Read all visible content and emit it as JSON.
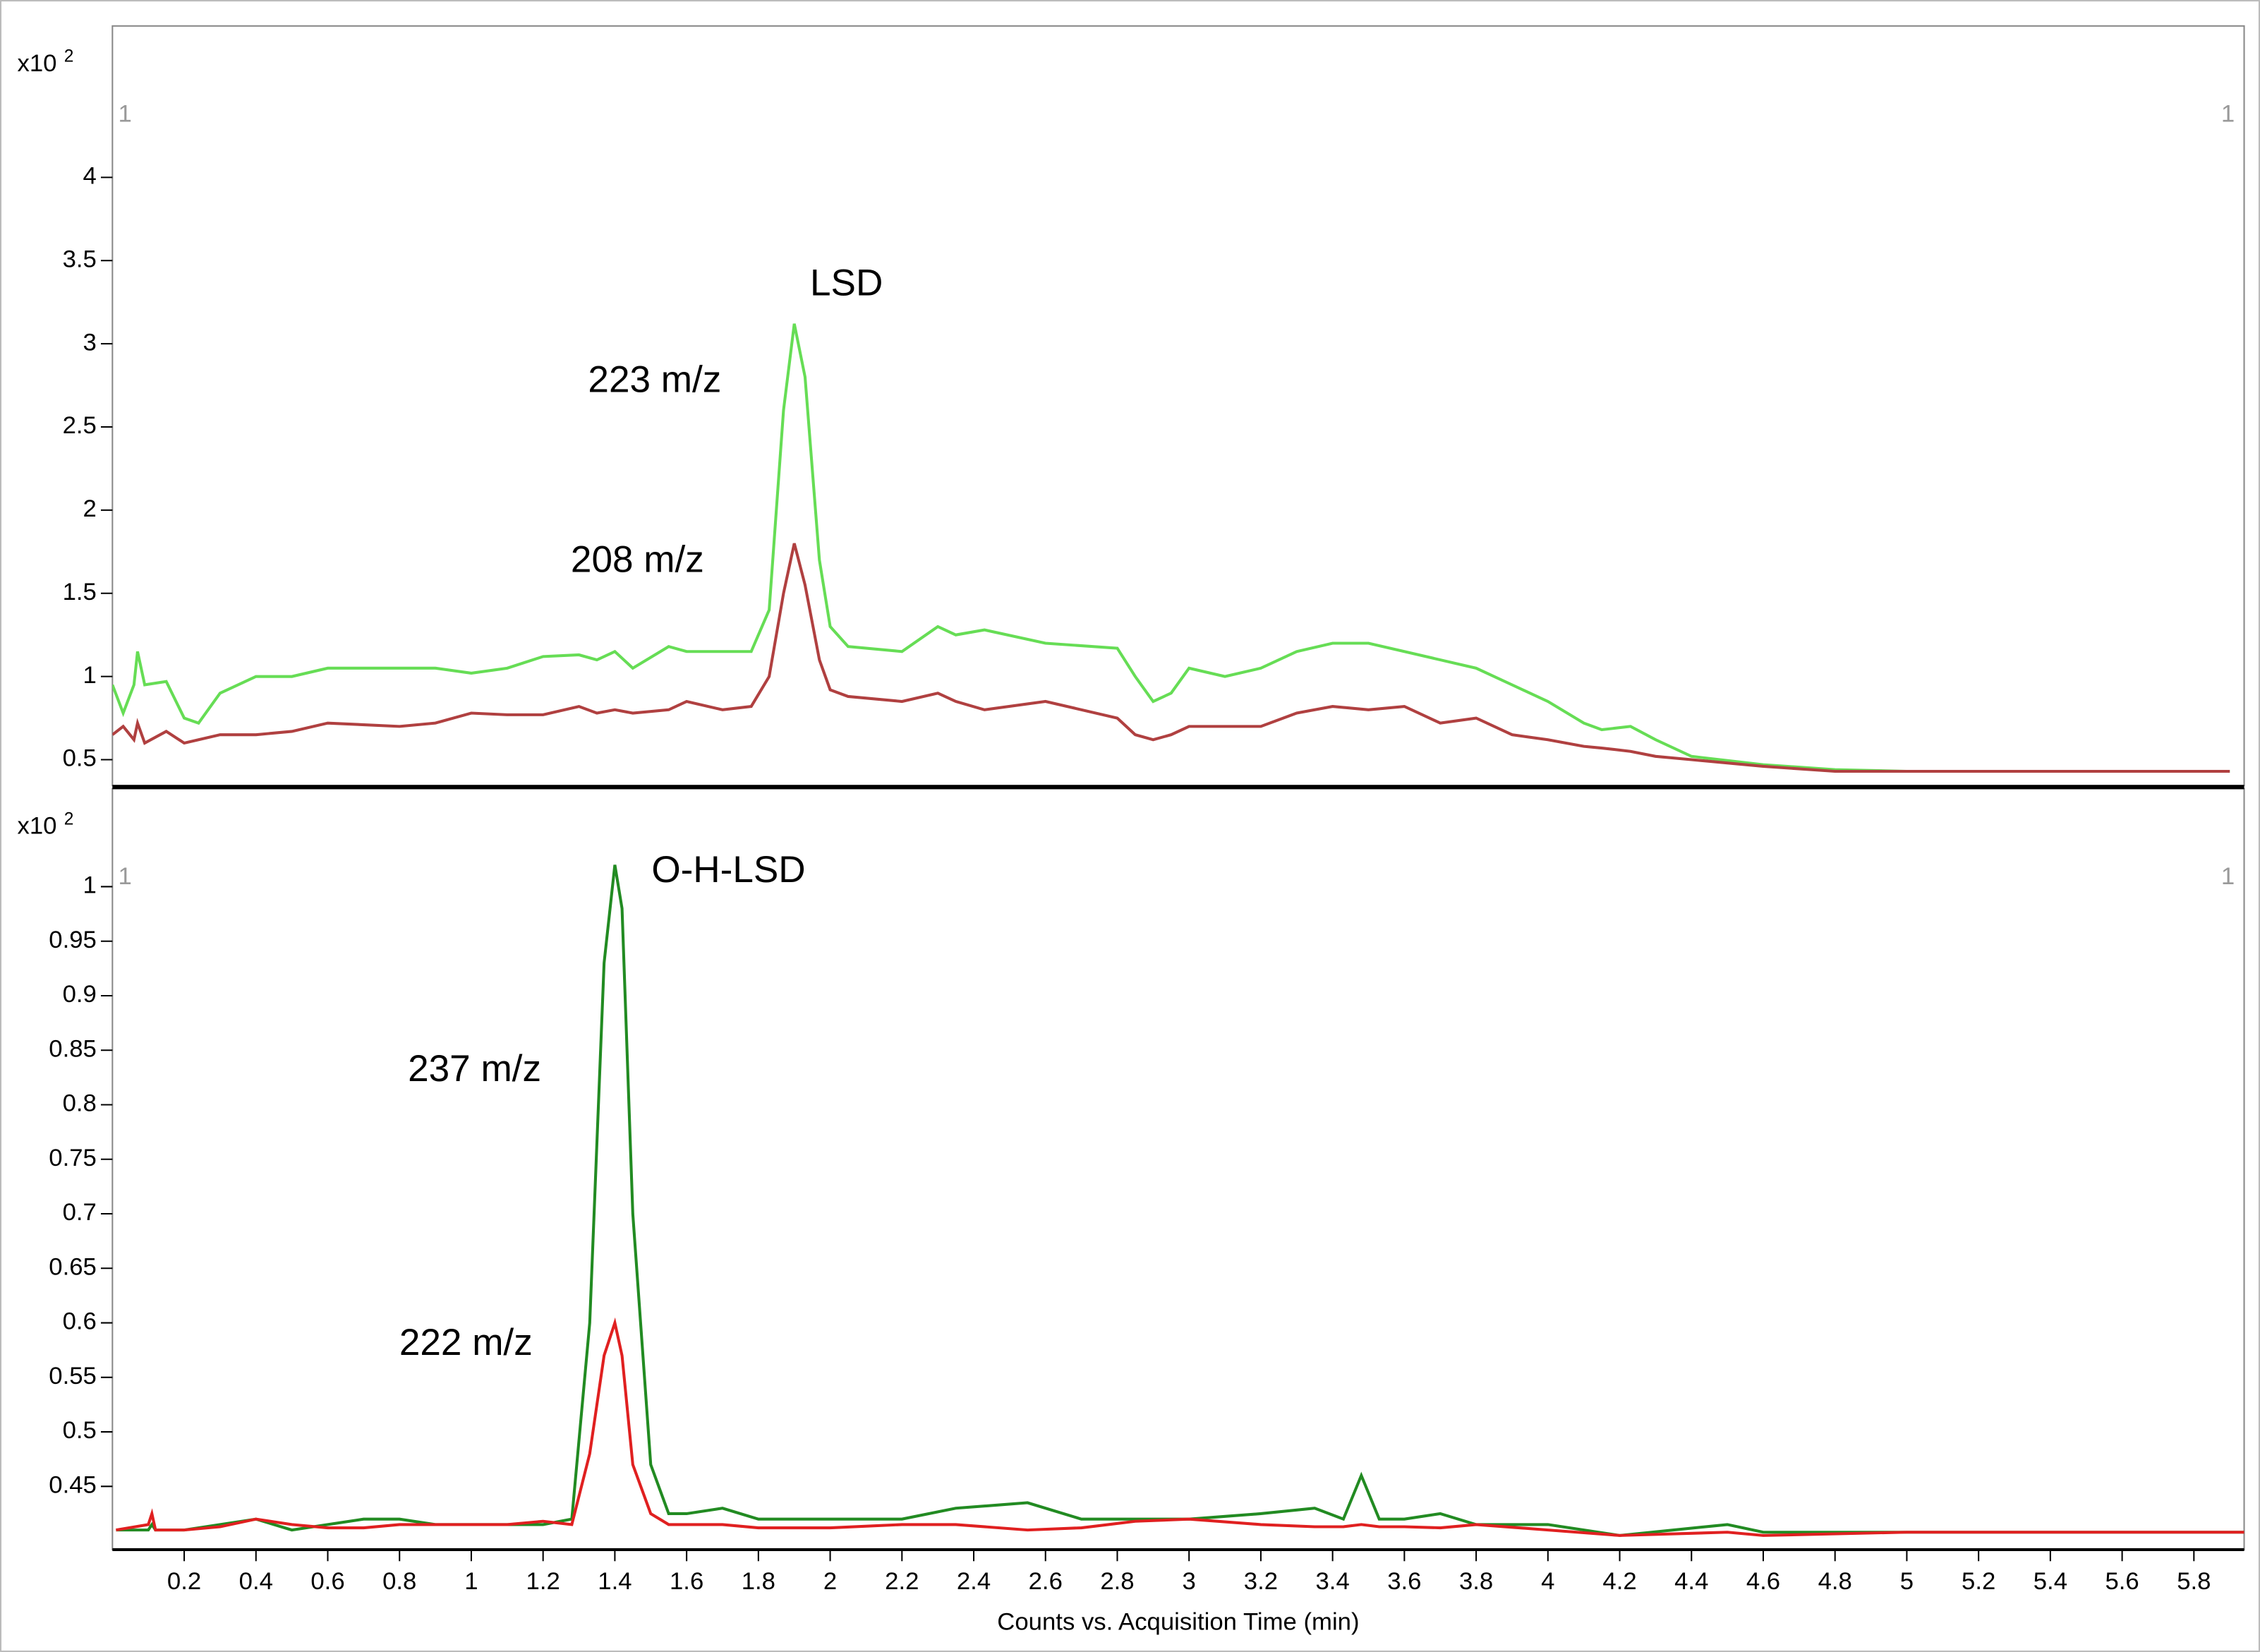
{
  "chart_data": [
    {
      "type": "line",
      "y_unit": {
        "base": "x10",
        "exponent": "2"
      },
      "corner_label": "1",
      "annotations": [
        "LSD",
        "223 m/z",
        "208 m/z"
      ],
      "x": [
        0,
        0.03,
        0.06,
        0.07,
        0.09,
        0.15,
        0.2,
        0.24,
        0.3,
        0.4,
        0.5,
        0.6,
        0.8,
        0.9,
        1.0,
        1.1,
        1.2,
        1.3,
        1.35,
        1.4,
        1.45,
        1.55,
        1.6,
        1.7,
        1.78,
        1.83,
        1.87,
        1.9,
        1.93,
        1.97,
        2.0,
        2.05,
        2.2,
        2.3,
        2.35,
        2.43,
        2.6,
        2.8,
        2.85,
        2.9,
        2.95,
        3.0,
        3.1,
        3.2,
        3.3,
        3.4,
        3.5,
        3.6,
        3.7,
        3.8,
        3.9,
        4.0,
        4.1,
        4.15,
        4.23,
        4.3,
        4.4,
        4.6,
        4.8,
        5.0,
        5.9
      ],
      "series": [
        {
          "color": "#66dd55",
          "values": [
            0.95,
            0.78,
            0.95,
            1.15,
            0.95,
            0.97,
            0.75,
            0.72,
            0.9,
            1.0,
            1.0,
            1.05,
            1.05,
            1.05,
            1.02,
            1.05,
            1.12,
            1.13,
            1.1,
            1.15,
            1.05,
            1.18,
            1.15,
            1.15,
            1.15,
            1.4,
            2.6,
            3.12,
            2.8,
            1.7,
            1.3,
            1.18,
            1.15,
            1.3,
            1.25,
            1.28,
            1.2,
            1.17,
            1.0,
            0.85,
            0.9,
            1.05,
            1.0,
            1.05,
            1.15,
            1.2,
            1.2,
            1.15,
            1.1,
            1.05,
            0.95,
            0.85,
            0.72,
            0.68,
            0.7,
            0.62,
            0.52,
            0.47,
            0.44,
            0.43,
            0.43
          ]
        },
        {
          "color": "#b04040",
          "values": [
            0.65,
            0.7,
            0.62,
            0.72,
            0.6,
            0.67,
            0.6,
            0.62,
            0.65,
            0.65,
            0.67,
            0.72,
            0.7,
            0.72,
            0.78,
            0.77,
            0.77,
            0.82,
            0.78,
            0.8,
            0.78,
            0.8,
            0.85,
            0.8,
            0.82,
            1.0,
            1.5,
            1.8,
            1.55,
            1.1,
            0.92,
            0.88,
            0.85,
            0.9,
            0.85,
            0.8,
            0.85,
            0.75,
            0.65,
            0.62,
            0.65,
            0.7,
            0.7,
            0.7,
            0.78,
            0.82,
            0.8,
            0.82,
            0.72,
            0.75,
            0.65,
            0.62,
            0.58,
            0.57,
            0.55,
            0.52,
            0.5,
            0.46,
            0.43,
            0.43,
            0.43
          ]
        }
      ],
      "xlim": [
        0,
        5.94
      ],
      "ylim": [
        0.344,
        4.91
      ],
      "yticks": [
        0.5,
        1,
        1.5,
        2,
        2.5,
        3,
        3.5,
        4
      ]
    },
    {
      "type": "line",
      "y_unit": {
        "base": "x10",
        "exponent": "2"
      },
      "corner_label": "1",
      "annotations": [
        "O-H-LSD",
        "237 m/z",
        "222 m/z"
      ],
      "x_label": "Counts vs. Acquisition Time (min)",
      "x": [
        0.01,
        0.1,
        0.11,
        0.12,
        0.2,
        0.3,
        0.4,
        0.5,
        0.6,
        0.7,
        0.8,
        0.9,
        1.0,
        1.1,
        1.2,
        1.28,
        1.33,
        1.37,
        1.4,
        1.42,
        1.45,
        1.5,
        1.55,
        1.6,
        1.7,
        1.8,
        2.0,
        2.2,
        2.35,
        2.55,
        2.7,
        2.85,
        3.0,
        3.2,
        3.35,
        3.43,
        3.48,
        3.53,
        3.6,
        3.7,
        3.8,
        4.0,
        4.2,
        4.5,
        4.6,
        5.0,
        5.94
      ],
      "series": [
        {
          "color": "#228b22",
          "values": [
            0.41,
            0.41,
            0.415,
            0.41,
            0.41,
            0.415,
            0.42,
            0.41,
            0.415,
            0.42,
            0.42,
            0.415,
            0.415,
            0.415,
            0.415,
            0.42,
            0.6,
            0.93,
            1.02,
            0.98,
            0.7,
            0.47,
            0.425,
            0.425,
            0.43,
            0.42,
            0.42,
            0.42,
            0.43,
            0.435,
            0.42,
            0.42,
            0.42,
            0.425,
            0.43,
            0.42,
            0.46,
            0.42,
            0.42,
            0.425,
            0.415,
            0.415,
            0.405,
            0.415,
            0.408,
            0.408,
            0.408
          ]
        },
        {
          "color": "#e02020",
          "values": [
            0.41,
            0.415,
            0.425,
            0.41,
            0.41,
            0.413,
            0.42,
            0.415,
            0.412,
            0.412,
            0.415,
            0.415,
            0.415,
            0.415,
            0.418,
            0.415,
            0.48,
            0.57,
            0.6,
            0.57,
            0.47,
            0.425,
            0.415,
            0.415,
            0.415,
            0.412,
            0.412,
            0.415,
            0.415,
            0.41,
            0.412,
            0.418,
            0.42,
            0.415,
            0.413,
            0.413,
            0.415,
            0.413,
            0.413,
            0.412,
            0.415,
            0.41,
            0.405,
            0.408,
            0.405,
            0.408,
            0.408
          ]
        }
      ],
      "xlim": [
        0,
        5.94
      ],
      "ylim": [
        0.392,
        1.09
      ],
      "yticks": [
        0.45,
        0.5,
        0.55,
        0.6,
        0.65,
        0.7,
        0.75,
        0.8,
        0.85,
        0.9,
        0.95,
        1
      ],
      "xticks": [
        0.2,
        0.4,
        0.6,
        0.8,
        1,
        1.2,
        1.4,
        1.6,
        1.8,
        2,
        2.2,
        2.4,
        2.6,
        2.8,
        3,
        3.2,
        3.4,
        3.6,
        3.8,
        4,
        4.2,
        4.4,
        4.6,
        4.8,
        5,
        5.2,
        5.4,
        5.6,
        5.8
      ]
    }
  ]
}
